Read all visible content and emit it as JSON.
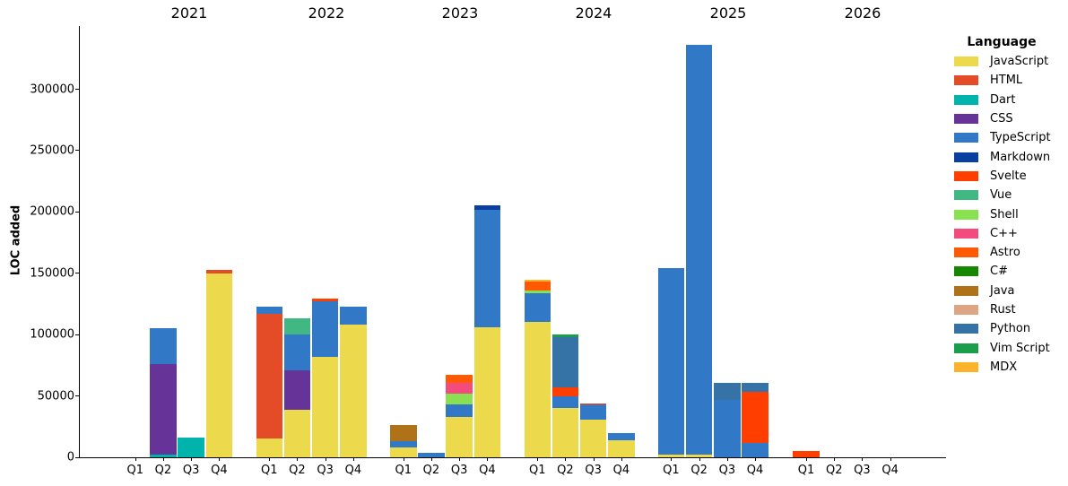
{
  "figure": {
    "ylabel": "LOC added",
    "legend_title": "Language"
  },
  "chart_data": {
    "type": "bar",
    "stacked": true,
    "title": "",
    "xlabel": "",
    "ylabel": "LOC added",
    "legend_title": "Language",
    "legend_position": "right",
    "grid": false,
    "ylim": [
      0,
      350000
    ],
    "yticks": [
      0,
      50000,
      100000,
      150000,
      200000,
      250000,
      300000
    ],
    "years": [
      "2021",
      "2022",
      "2023",
      "2024",
      "2025",
      "2026"
    ],
    "quarters": [
      "Q1",
      "Q2",
      "Q3",
      "Q4"
    ],
    "categories": [
      "2021 Q1",
      "2021 Q2",
      "2021 Q3",
      "2021 Q4",
      "2022 Q1",
      "2022 Q2",
      "2022 Q3",
      "2022 Q4",
      "2023 Q1",
      "2023 Q2",
      "2023 Q3",
      "2023 Q4",
      "2024 Q1",
      "2024 Q2",
      "2024 Q3",
      "2024 Q4",
      "2025 Q1",
      "2025 Q2",
      "2025 Q3",
      "2025 Q4",
      "2026 Q1",
      "2026 Q2",
      "2026 Q3",
      "2026 Q4"
    ],
    "series": [
      {
        "name": "JavaScript",
        "color": "#ecd94c",
        "values": [
          0,
          0,
          0,
          150000,
          15000,
          39000,
          82000,
          108000,
          8000,
          0,
          33000,
          106000,
          110000,
          40000,
          31000,
          14000,
          2000,
          2000,
          0,
          0,
          0,
          0,
          0,
          0
        ]
      },
      {
        "name": "HTML",
        "color": "#e34c26",
        "values": [
          0,
          0,
          0,
          3000,
          102000,
          0,
          0,
          0,
          0,
          0,
          0,
          0,
          0,
          0,
          0,
          0,
          0,
          0,
          0,
          0,
          0,
          0,
          0,
          0
        ]
      },
      {
        "name": "Dart",
        "color": "#00b4ab",
        "values": [
          0,
          2000,
          16000,
          0,
          0,
          0,
          0,
          0,
          0,
          0,
          0,
          0,
          0,
          0,
          0,
          0,
          0,
          0,
          0,
          0,
          0,
          0,
          0,
          0
        ]
      },
      {
        "name": "CSS",
        "color": "#663399",
        "values": [
          0,
          74000,
          0,
          0,
          0,
          32000,
          0,
          0,
          0,
          0,
          0,
          0,
          0,
          0,
          0,
          0,
          0,
          0,
          0,
          0,
          0,
          0,
          0,
          0
        ]
      },
      {
        "name": "TypeScript",
        "color": "#3178c6",
        "values": [
          0,
          29000,
          0,
          0,
          6000,
          29000,
          45000,
          15000,
          5000,
          4000,
          10000,
          96000,
          24000,
          10000,
          12000,
          6000,
          152000,
          334000,
          47000,
          12000,
          0,
          0,
          0,
          0
        ]
      },
      {
        "name": "Markdown",
        "color": "#083fa1",
        "values": [
          0,
          0,
          0,
          0,
          0,
          0,
          0,
          0,
          0,
          0,
          0,
          3000,
          0,
          0,
          0,
          0,
          0,
          0,
          0,
          0,
          0,
          0,
          0,
          0
        ]
      },
      {
        "name": "Svelte",
        "color": "#ff3e00",
        "values": [
          0,
          0,
          0,
          0,
          0,
          0,
          2000,
          0,
          0,
          0,
          0,
          0,
          0,
          7000,
          1000,
          0,
          0,
          0,
          0,
          41000,
          5000,
          0,
          0,
          0
        ]
      },
      {
        "name": "Vue",
        "color": "#41b883",
        "values": [
          0,
          0,
          0,
          0,
          0,
          13000,
          0,
          0,
          0,
          0,
          0,
          0,
          0,
          0,
          0,
          0,
          0,
          0,
          0,
          0,
          0,
          0,
          0,
          0
        ]
      },
      {
        "name": "Shell",
        "color": "#89e051",
        "values": [
          0,
          0,
          0,
          0,
          0,
          0,
          0,
          0,
          0,
          0,
          9000,
          0,
          2000,
          0,
          0,
          0,
          0,
          0,
          0,
          0,
          0,
          0,
          0,
          0
        ]
      },
      {
        "name": "C++",
        "color": "#f34b7d",
        "values": [
          0,
          0,
          0,
          0,
          0,
          0,
          0,
          0,
          0,
          0,
          9000,
          0,
          0,
          0,
          0,
          0,
          0,
          0,
          0,
          0,
          0,
          0,
          0,
          0
        ]
      },
      {
        "name": "Astro",
        "color": "#ff5a03",
        "values": [
          0,
          0,
          0,
          0,
          0,
          0,
          0,
          0,
          0,
          0,
          6000,
          0,
          7000,
          0,
          0,
          0,
          0,
          0,
          0,
          0,
          0,
          0,
          0,
          0
        ]
      },
      {
        "name": "C#",
        "color": "#178600",
        "values": [
          0,
          0,
          0,
          0,
          0,
          0,
          0,
          0,
          0,
          0,
          0,
          0,
          0,
          0,
          0,
          0,
          0,
          0,
          0,
          0,
          0,
          0,
          0,
          0
        ]
      },
      {
        "name": "Java",
        "color": "#b07219",
        "values": [
          0,
          0,
          0,
          0,
          0,
          0,
          0,
          0,
          13000,
          0,
          0,
          0,
          0,
          0,
          0,
          0,
          0,
          0,
          0,
          0,
          0,
          0,
          0,
          0
        ]
      },
      {
        "name": "Rust",
        "color": "#dea584",
        "values": [
          0,
          0,
          0,
          0,
          0,
          0,
          0,
          0,
          0,
          0,
          0,
          0,
          0,
          0,
          0,
          0,
          0,
          0,
          0,
          0,
          0,
          0,
          0,
          0
        ]
      },
      {
        "name": "Python",
        "color": "#3572a5",
        "values": [
          0,
          0,
          0,
          0,
          0,
          0,
          0,
          0,
          0,
          0,
          0,
          0,
          0,
          41000,
          0,
          0,
          0,
          0,
          14000,
          8000,
          0,
          0,
          0,
          0
        ]
      },
      {
        "name": "Vim Script",
        "color": "#199f4b",
        "values": [
          0,
          0,
          0,
          0,
          0,
          0,
          0,
          0,
          0,
          0,
          0,
          0,
          0,
          2000,
          0,
          0,
          0,
          0,
          0,
          0,
          0,
          0,
          0,
          0
        ]
      },
      {
        "name": "MDX",
        "color": "#fcb32c",
        "values": [
          0,
          0,
          0,
          0,
          0,
          0,
          0,
          0,
          0,
          0,
          0,
          0,
          2000,
          0,
          0,
          0,
          0,
          0,
          0,
          0,
          0,
          0,
          0,
          0
        ]
      }
    ]
  }
}
